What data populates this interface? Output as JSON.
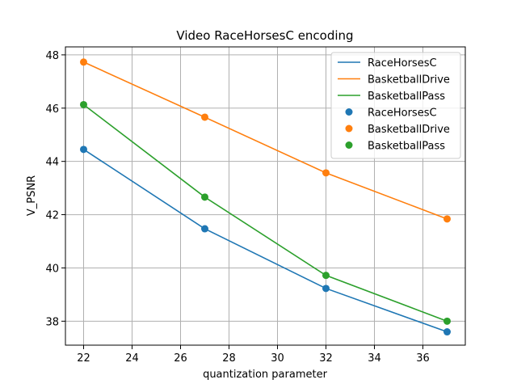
{
  "chart_data": {
    "type": "line",
    "title": "Video RaceHorsesC encoding",
    "xlabel": "quantization parameter",
    "ylabel": "V_PSNR",
    "xlim": [
      21.25,
      37.75
    ],
    "ylim": [
      37.1,
      48.3
    ],
    "xticks": [
      22,
      24,
      26,
      28,
      30,
      32,
      34,
      36
    ],
    "yticks": [
      38,
      40,
      42,
      44,
      46,
      48
    ],
    "grid": true,
    "legend_position": "top-right",
    "x": [
      22,
      27,
      32,
      37
    ],
    "series": [
      {
        "name": "RaceHorsesC",
        "color": "#1f77b4",
        "values": [
          44.45,
          41.47,
          39.23,
          37.6
        ]
      },
      {
        "name": "BasketballDrive",
        "color": "#ff7f0e",
        "values": [
          47.73,
          45.66,
          43.57,
          41.84
        ]
      },
      {
        "name": "BasketballPass",
        "color": "#2ca02c",
        "values": [
          46.13,
          42.66,
          39.72,
          38.0
        ]
      }
    ],
    "legend": [
      {
        "label": "RaceHorsesC",
        "marker": "line",
        "color": "#1f77b4"
      },
      {
        "label": "BasketballDrive",
        "marker": "line",
        "color": "#ff7f0e"
      },
      {
        "label": "BasketballPass",
        "marker": "line",
        "color": "#2ca02c"
      },
      {
        "label": "RaceHorsesC",
        "marker": "dot",
        "color": "#1f77b4"
      },
      {
        "label": "BasketballDrive",
        "marker": "dot",
        "color": "#ff7f0e"
      },
      {
        "label": "BasketballPass",
        "marker": "dot",
        "color": "#2ca02c"
      }
    ]
  }
}
